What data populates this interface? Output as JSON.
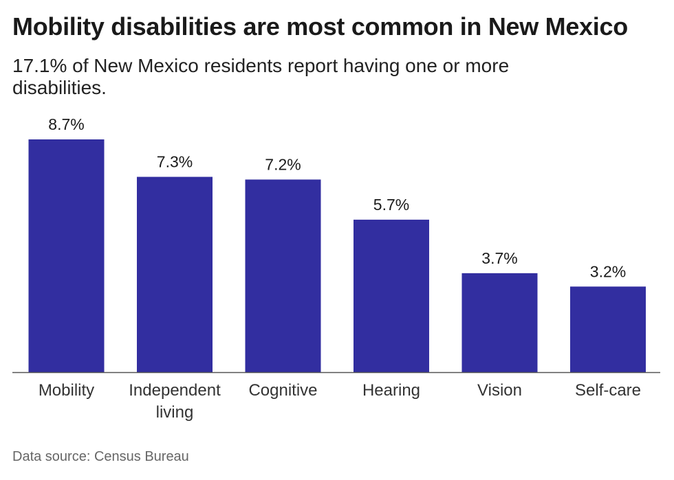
{
  "title": "Mobility disabilities are most common in New Mexico",
  "subtitle": "17.1% of New Mexico residents report having one or more disabilities.",
  "source": "Data source: Census Bureau",
  "colors": {
    "bar": "#322ea0",
    "axis": "#555555",
    "text": "#1a1a1a"
  },
  "chart_data": {
    "type": "bar",
    "categories": [
      "Mobility",
      "Independent living",
      "Cognitive",
      "Hearing",
      "Vision",
      "Self-care"
    ],
    "category_lines": [
      [
        "Mobility"
      ],
      [
        "Independent",
        "living"
      ],
      [
        "Cognitive"
      ],
      [
        "Hearing"
      ],
      [
        "Vision"
      ],
      [
        "Self-care"
      ]
    ],
    "values": [
      8.7,
      7.3,
      7.2,
      5.7,
      3.7,
      3.2
    ],
    "value_labels": [
      "8.7%",
      "7.3%",
      "7.2%",
      "5.7%",
      "3.7%",
      "3.2%"
    ],
    "unit": "%",
    "ylim": [
      0,
      8.7
    ],
    "grid": false
  }
}
